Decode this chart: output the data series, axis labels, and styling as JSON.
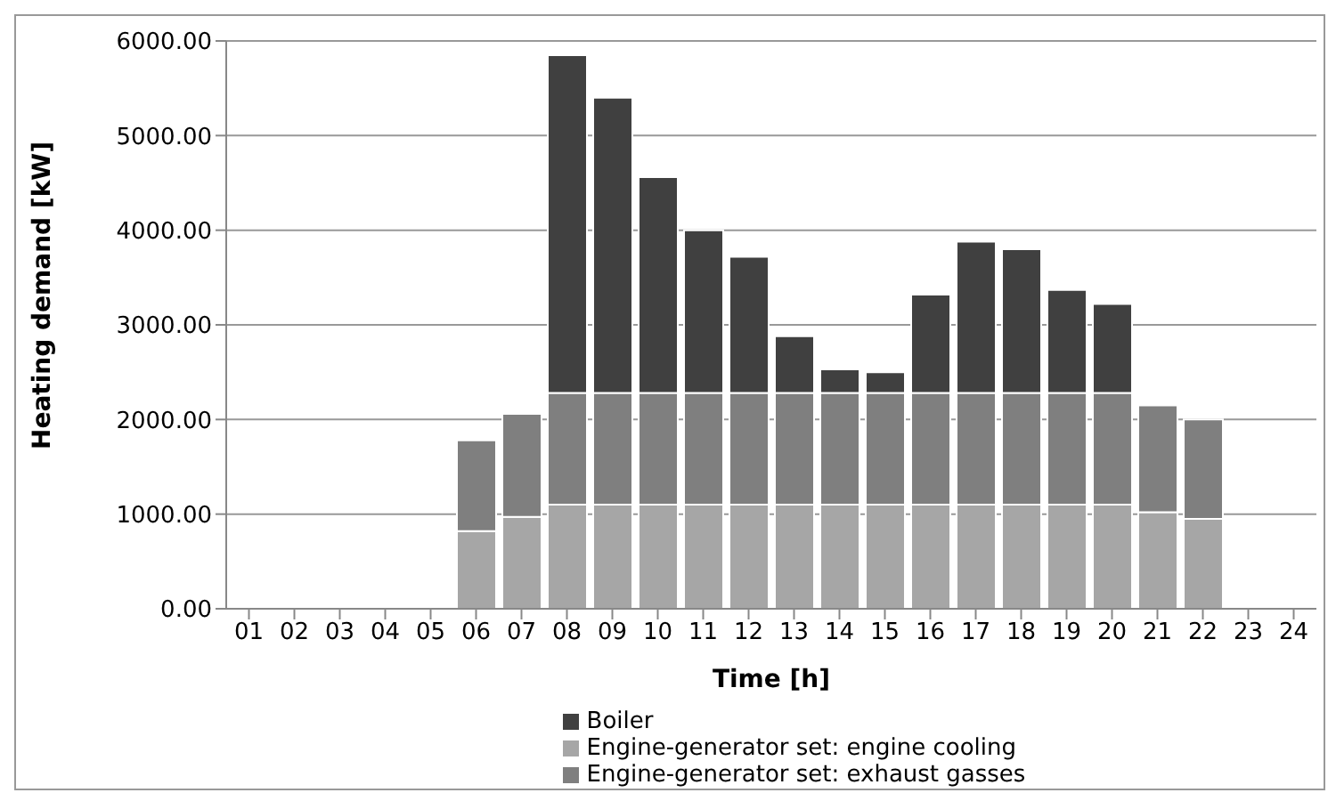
{
  "chart_data": {
    "type": "bar",
    "stacked": true,
    "xlabel": "Time [h]",
    "ylabel": "Heating demand [kW]",
    "categories": [
      "01",
      "02",
      "03",
      "04",
      "05",
      "06",
      "07",
      "08",
      "09",
      "10",
      "11",
      "12",
      "13",
      "14",
      "15",
      "16",
      "17",
      "18",
      "19",
      "20",
      "21",
      "22",
      "23",
      "24"
    ],
    "series": [
      {
        "name": "Engine-generator set: engine cooling",
        "color": "#a6a6a6",
        "values": [
          0,
          0,
          0,
          0,
          0,
          820,
          970,
          1100,
          1100,
          1100,
          1100,
          1100,
          1100,
          1100,
          1100,
          1100,
          1100,
          1100,
          1100,
          1100,
          1020,
          950,
          0,
          0
        ]
      },
      {
        "name": "Engine-generator set: exhaust gasses",
        "color": "#7f7f7f",
        "values": [
          0,
          0,
          0,
          0,
          0,
          960,
          1090,
          1180,
          1180,
          1180,
          1180,
          1180,
          1180,
          1180,
          1180,
          1180,
          1180,
          1180,
          1180,
          1180,
          1130,
          1050,
          0,
          0
        ]
      },
      {
        "name": "Boiler",
        "color": "#404040",
        "values": [
          0,
          0,
          0,
          0,
          0,
          0,
          0,
          3570,
          3120,
          2280,
          1720,
          1440,
          600,
          250,
          220,
          1040,
          1600,
          1520,
          1090,
          940,
          0,
          0,
          0,
          0
        ]
      }
    ],
    "ylim": [
      0,
      6000
    ],
    "yticks": [
      {
        "value": 0,
        "label": "0.00"
      },
      {
        "value": 1000,
        "label": "1000.00"
      },
      {
        "value": 2000,
        "label": "2000.00"
      },
      {
        "value": 3000,
        "label": "3000.00"
      },
      {
        "value": 4000,
        "label": "4000.00"
      },
      {
        "value": 5000,
        "label": "5000.00"
      },
      {
        "value": 6000,
        "label": "6000.00"
      }
    ],
    "grid": "y",
    "legend": "bottom"
  }
}
